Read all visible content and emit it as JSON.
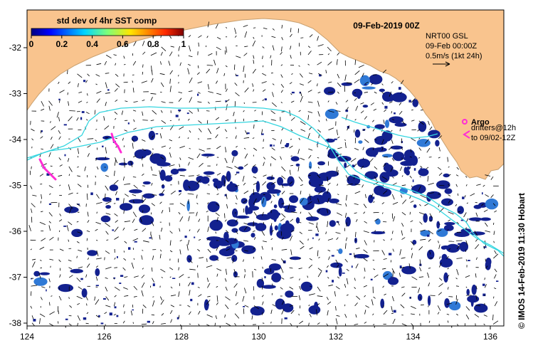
{
  "colors": {
    "land": "#f9c48e",
    "ocean": "#ffffff",
    "anomaly": "#13218f",
    "anomaly_light": "#2f79d6",
    "track": "#35d6e0",
    "argo": "#ff2dd5",
    "arrow": "#000000"
  },
  "map": {
    "date_title": "09-Feb-2019 00Z",
    "lon_ticks": [
      "124",
      "126",
      "128",
      "130",
      "132",
      "134",
      "136"
    ],
    "lat_ticks": [
      "-32",
      "-33",
      "-34",
      "-35",
      "-36",
      "-37",
      "-38"
    ]
  },
  "colorbar": {
    "title": "std dev of 4hr SST comp",
    "ticks": [
      "0",
      "0.2",
      "0.4",
      "0.6",
      "0.8",
      "1"
    ]
  },
  "current_scale": {
    "line1": "NRT00 GSL",
    "line2": "09-Feb 00:00Z",
    "line3": "0.5m/s (1kt 24h)"
  },
  "legend": {
    "argo_label": "Argo",
    "drifters_line1": "drifters@12h",
    "drifters_line2": "to 09/02-12Z"
  },
  "credit": "© IMOS 14-Feb-2019 11:30 Hobart"
}
